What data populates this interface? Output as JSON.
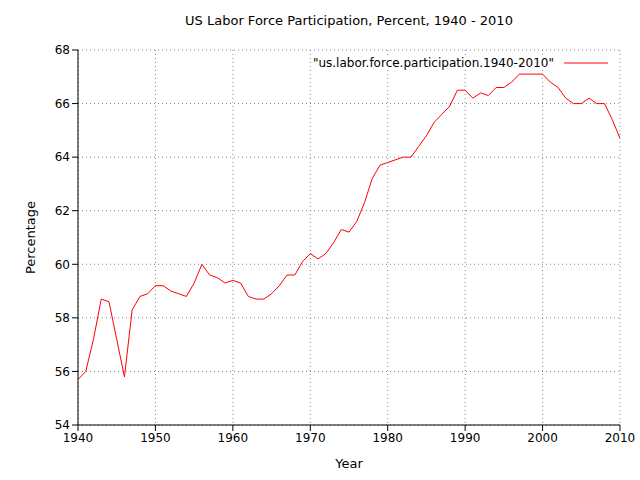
{
  "chart_data": {
    "type": "line",
    "title": "US Labor Force Participation, Percent, 1940 - 2010",
    "x_label": "Year",
    "y_label": "Percentage",
    "x": [
      1940,
      1941,
      1942,
      1943,
      1944,
      1945,
      1946,
      1947,
      1948,
      1949,
      1950,
      1951,
      1952,
      1953,
      1954,
      1955,
      1956,
      1957,
      1958,
      1959,
      1960,
      1961,
      1962,
      1963,
      1964,
      1965,
      1966,
      1967,
      1968,
      1969,
      1970,
      1971,
      1972,
      1973,
      1974,
      1975,
      1976,
      1977,
      1978,
      1979,
      1980,
      1981,
      1982,
      1983,
      1984,
      1985,
      1986,
      1987,
      1988,
      1989,
      1990,
      1991,
      1992,
      1993,
      1994,
      1995,
      1996,
      1997,
      1998,
      1999,
      2000,
      2001,
      2002,
      2003,
      2004,
      2005,
      2006,
      2007,
      2008,
      2009,
      2010
    ],
    "series": [
      {
        "name": "\"us.labor.force.participation.1940-2010\"",
        "color": "#ff0000",
        "values": [
          55.7,
          56.0,
          57.2,
          58.7,
          58.6,
          57.2,
          55.8,
          58.3,
          58.8,
          58.9,
          59.2,
          59.2,
          59.0,
          58.9,
          58.8,
          59.3,
          60.0,
          59.6,
          59.5,
          59.3,
          59.4,
          59.3,
          58.8,
          58.7,
          58.7,
          58.9,
          59.2,
          59.6,
          59.6,
          60.1,
          60.4,
          60.2,
          60.4,
          60.8,
          61.3,
          61.2,
          61.6,
          62.3,
          63.2,
          63.7,
          63.8,
          63.9,
          64.0,
          64.0,
          64.4,
          64.8,
          65.3,
          65.6,
          65.9,
          66.5,
          66.5,
          66.2,
          66.4,
          66.3,
          66.6,
          66.6,
          66.8,
          67.1,
          67.1,
          67.1,
          67.1,
          66.8,
          66.6,
          66.2,
          66.0,
          66.0,
          66.2,
          66.0,
          66.0,
          65.4,
          64.7
        ]
      }
    ],
    "xlim": [
      1940,
      2010
    ],
    "xticks": [
      1940,
      1950,
      1960,
      1970,
      1980,
      1990,
      2000,
      2010
    ],
    "ylim": [
      54,
      68
    ],
    "yticks": [
      54,
      56,
      58,
      60,
      62,
      64,
      66,
      68
    ],
    "grid": true,
    "legend": "upper right"
  }
}
